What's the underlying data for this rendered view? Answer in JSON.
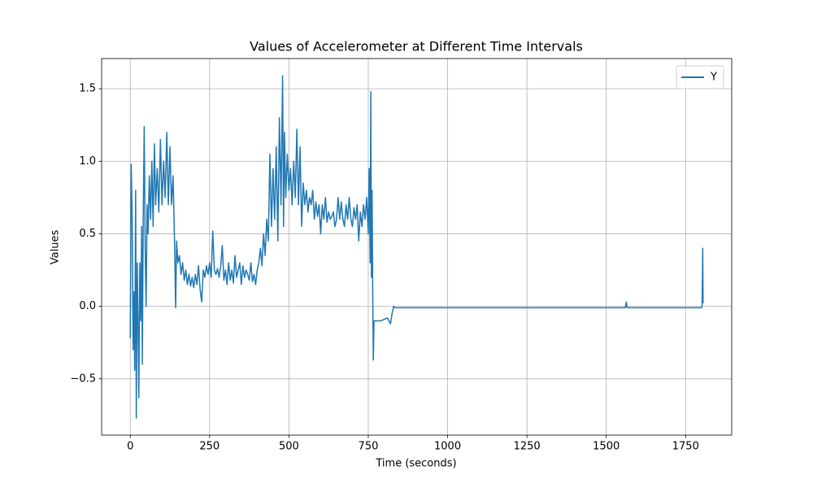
{
  "chart_data": {
    "type": "line",
    "title": "Values of Accelerometer at Different Time Intervals",
    "x_label": "Time (seconds)",
    "y_label": "Values",
    "x": [
      0,
      3,
      6,
      9,
      12,
      14,
      17,
      19,
      22,
      25,
      27,
      30,
      33,
      36,
      38,
      41,
      44,
      47,
      50,
      53,
      56,
      60,
      64,
      68,
      72,
      76,
      80,
      85,
      90,
      95,
      100,
      105,
      110,
      115,
      120,
      125,
      130,
      135,
      140,
      143,
      146,
      150,
      155,
      160,
      165,
      170,
      175,
      180,
      185,
      190,
      195,
      200,
      205,
      210,
      215,
      220,
      225,
      230,
      235,
      240,
      245,
      250,
      255,
      260,
      265,
      270,
      275,
      280,
      285,
      290,
      295,
      300,
      305,
      310,
      315,
      320,
      325,
      330,
      335,
      340,
      345,
      350,
      355,
      360,
      365,
      370,
      375,
      380,
      385,
      390,
      395,
      400,
      405,
      410,
      415,
      420,
      425,
      430,
      435,
      440,
      445,
      450,
      455,
      460,
      465,
      470,
      475,
      480,
      483,
      486,
      490,
      495,
      500,
      505,
      510,
      515,
      520,
      525,
      530,
      535,
      540,
      545,
      550,
      555,
      560,
      565,
      570,
      575,
      580,
      585,
      590,
      595,
      600,
      605,
      610,
      615,
      620,
      625,
      630,
      635,
      640,
      645,
      650,
      655,
      660,
      665,
      670,
      675,
      680,
      685,
      690,
      695,
      700,
      705,
      710,
      715,
      720,
      725,
      730,
      735,
      740,
      745,
      750,
      753,
      756,
      758,
      760,
      762,
      764,
      766,
      768,
      790,
      810,
      820,
      825,
      830,
      835,
      900,
      1000,
      1200,
      1400,
      1560,
      1563,
      1566,
      1700,
      1800,
      1802,
      1804,
      1805
    ],
    "series": [
      {
        "name": "Y",
        "color": "#1f77b4",
        "values": [
          -0.22,
          0.98,
          0.6,
          -0.3,
          0.1,
          -0.44,
          0.8,
          -0.77,
          0.3,
          -0.2,
          -0.63,
          0.3,
          -0.1,
          0.55,
          -0.4,
          0.65,
          1.24,
          0.4,
          0.0,
          0.7,
          0.5,
          0.9,
          0.6,
          1.0,
          0.55,
          1.12,
          0.7,
          0.95,
          0.65,
          1.15,
          0.7,
          1.0,
          0.75,
          1.2,
          0.7,
          1.1,
          0.7,
          0.9,
          0.4,
          -0.01,
          0.45,
          0.3,
          0.35,
          0.22,
          0.3,
          0.18,
          0.25,
          0.15,
          0.22,
          0.14,
          0.2,
          0.13,
          0.22,
          0.15,
          0.28,
          0.12,
          0.03,
          0.25,
          0.2,
          0.28,
          0.22,
          0.3,
          0.2,
          0.52,
          0.25,
          0.22,
          0.26,
          0.2,
          0.28,
          0.42,
          0.18,
          0.25,
          0.15,
          0.3,
          0.18,
          0.25,
          0.16,
          0.35,
          0.2,
          0.25,
          0.3,
          0.15,
          0.28,
          0.2,
          0.25,
          0.22,
          0.18,
          0.3,
          0.17,
          0.22,
          0.15,
          0.25,
          0.3,
          0.4,
          0.28,
          0.5,
          0.35,
          0.6,
          0.45,
          1.05,
          0.55,
          0.95,
          0.6,
          1.1,
          0.45,
          1.3,
          0.7,
          1.59,
          0.55,
          1.2,
          0.75,
          1.05,
          0.8,
          0.95,
          0.7,
          1.0,
          0.75,
          1.22,
          0.7,
          1.1,
          0.55,
          0.85,
          0.7,
          0.8,
          0.65,
          0.75,
          0.7,
          0.8,
          0.6,
          0.72,
          0.62,
          0.7,
          0.5,
          0.7,
          0.6,
          0.75,
          0.58,
          0.65,
          0.6,
          0.62,
          0.65,
          0.55,
          0.6,
          0.75,
          0.6,
          0.72,
          0.6,
          0.55,
          0.7,
          0.6,
          0.75,
          0.6,
          0.55,
          0.68,
          0.6,
          0.7,
          0.45,
          0.65,
          0.55,
          0.7,
          0.6,
          0.75,
          0.5,
          0.95,
          0.3,
          1.48,
          0.2,
          0.8,
          0.1,
          -0.37,
          -0.1,
          -0.1,
          -0.08,
          -0.12,
          -0.05,
          0.0,
          -0.01,
          -0.01,
          -0.01,
          -0.01,
          -0.01,
          -0.01,
          0.03,
          -0.01,
          -0.01,
          -0.01,
          0.0,
          0.4,
          0.02
        ]
      }
    ],
    "xlim": [
      -90.25,
      1895.25
    ],
    "xticks": [
      0,
      250,
      500,
      750,
      1000,
      1250,
      1500,
      1750
    ],
    "ylim": [
      -0.888,
      1.708
    ],
    "yticks": [
      {
        "value": -0.5,
        "label": "−0.5"
      },
      {
        "value": 0,
        "label": "0.0"
      },
      {
        "value": 0.5,
        "label": "0.5"
      },
      {
        "value": 1,
        "label": "1.0"
      },
      {
        "value": 1.5,
        "label": "1.5"
      }
    ],
    "grid": true,
    "legend": "upper right"
  }
}
